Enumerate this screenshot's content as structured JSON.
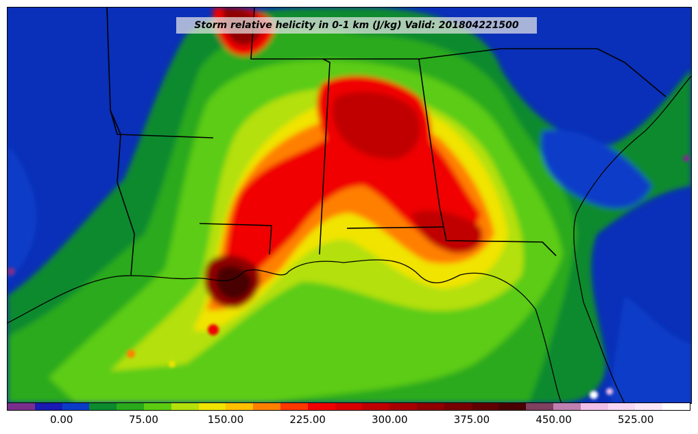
{
  "title": "Storm relative helicity in 0-1 km (J/kg) Valid: 201804221500",
  "colorbar": {
    "colors": [
      "#7a2f8c",
      "#1a1ab4",
      "#0a3cc8",
      "#0c8a2e",
      "#2aaa1a",
      "#5ccc12",
      "#b4e00c",
      "#f0e400",
      "#ffc000",
      "#ff8000",
      "#ff3800",
      "#f00000",
      "#d80000",
      "#c00000",
      "#a80000",
      "#900000",
      "#780000",
      "#600000",
      "#480000",
      "#804060",
      "#c080b0",
      "#f0c0e8",
      "#f8d8f4",
      "#fce8f8",
      "#ffffff"
    ],
    "labels": [
      "0.00",
      "75.00",
      "150.00",
      "225.00",
      "300.00",
      "375.00",
      "450.00",
      "525.00"
    ],
    "label_values": [
      0,
      75,
      150,
      225,
      300,
      375,
      450,
      525
    ],
    "range": [
      -50,
      575
    ]
  },
  "palette": {
    "water": "#0a2fb8",
    "low": "#1a1ab4",
    "green_dark": "#0c8a2e",
    "green": "#2aaa1a",
    "green_light": "#5ccc12",
    "yellow": "#f0e400",
    "orange": "#ff8000",
    "red": "#f00000",
    "dark_red": "#900000",
    "maroon": "#480000",
    "purple": "#7a2f8c",
    "white": "#ffffff"
  }
}
